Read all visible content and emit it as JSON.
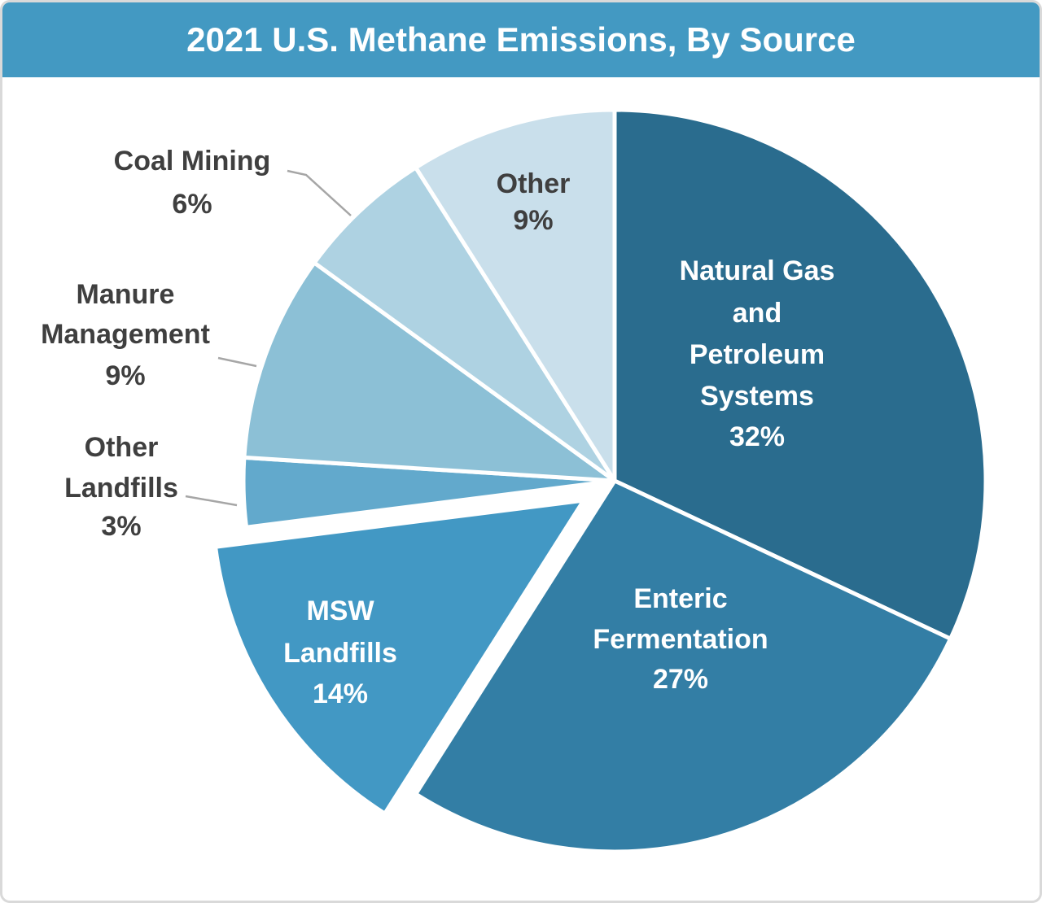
{
  "header": {
    "title": "2021 U.S. Methane Emissions, By Source"
  },
  "chart_data": {
    "type": "pie",
    "title": "2021 U.S. Methane Emissions, By Source",
    "unit": "percent",
    "start_angle_deg": 0,
    "direction": "clockwise",
    "legend": "none",
    "slices": [
      {
        "label": "Natural Gas and Petroleum Systems",
        "value": 32,
        "color": "#2A6C8E",
        "text_color": "#FFFFFF",
        "label_lines": [
          "Natural Gas",
          "and",
          "Petroleum",
          "Systems",
          "32%"
        ],
        "label_placement": "inside",
        "exploded": false
      },
      {
        "label": "Enteric Fermentation",
        "value": 27,
        "color": "#337EA5",
        "text_color": "#FFFFFF",
        "label_lines": [
          "Enteric",
          "Fermentation",
          "27%"
        ],
        "label_placement": "inside",
        "exploded": false
      },
      {
        "label": "MSW Landfills",
        "value": 14,
        "color": "#4298C4",
        "text_color": "#FFFFFF",
        "label_lines": [
          "MSW",
          "Landfills",
          "14%"
        ],
        "label_placement": "inside",
        "exploded": true
      },
      {
        "label": "Other Landfills",
        "value": 3,
        "color": "#62A9CC",
        "text_color": "#3F3F3F",
        "label_lines": [
          "Other",
          "Landfills",
          "3%"
        ],
        "label_placement": "outside",
        "exploded": false
      },
      {
        "label": "Manure Management",
        "value": 9,
        "color": "#8CC0D6",
        "text_color": "#3F3F3F",
        "label_lines": [
          "Manure",
          "Management",
          "9%"
        ],
        "label_placement": "outside",
        "exploded": false
      },
      {
        "label": "Coal Mining",
        "value": 6,
        "color": "#AED2E2",
        "text_color": "#3F3F3F",
        "label_lines": [
          "Coal Mining",
          "6%"
        ],
        "label_placement": "outside",
        "exploded": false
      },
      {
        "label": "Other",
        "value": 9,
        "color": "#C9DFEB",
        "text_color": "#3F3F3F",
        "label_lines": [
          "Other",
          "9%"
        ],
        "label_placement": "inside",
        "exploded": false
      }
    ],
    "colors": {
      "title_bar": "#4399C2",
      "title_text": "#FFFFFF",
      "outside_label_text": "#3F3F3F",
      "leader_line": "#A6A6A6",
      "slice_divider": "#FFFFFF",
      "card_border": "#D9D9D9",
      "background": "#FFFFFF"
    }
  }
}
